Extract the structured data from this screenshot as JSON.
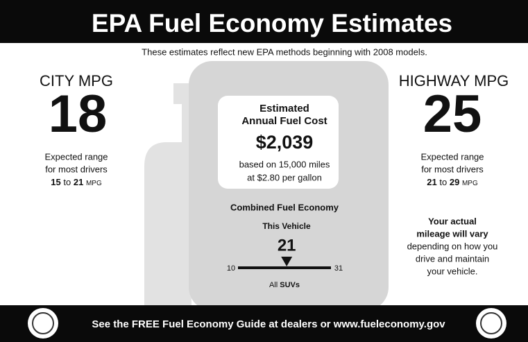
{
  "header": {
    "title": "EPA Fuel Economy Estimates",
    "subtitle": "These estimates reflect new EPA methods beginning with 2008 models."
  },
  "city": {
    "label": "CITY MPG",
    "value": 18,
    "range_text": [
      "Expected range",
      "for most drivers"
    ],
    "range_low": 15,
    "range_sep": "to",
    "range_high": 21,
    "range_unit": "MPG"
  },
  "highway": {
    "label": "HIGHWAY MPG",
    "value": 25,
    "range_text": [
      "Expected range",
      "for most drivers"
    ],
    "range_low": 21,
    "range_sep": "to",
    "range_high": 29,
    "range_unit": "MPG"
  },
  "fuel_cost": {
    "title": [
      "Estimated",
      "Annual Fuel Cost"
    ],
    "amount": "$2,039",
    "note": [
      "based on 15,000 miles",
      "at $2.80 per gallon"
    ]
  },
  "combined": {
    "title": "Combined Fuel Economy",
    "vehicle_label": "This Vehicle",
    "value": 21,
    "min": 10,
    "max": 31,
    "class_prefix": "All",
    "class_name": "SUVs"
  },
  "notice": {
    "bold_lines": [
      "Your actual",
      "mileage will vary"
    ],
    "lines": [
      "depending on how you",
      "drive and maintain",
      "your vehicle."
    ]
  },
  "footer": {
    "text": "See the FREE Fuel Economy Guide at dealers or www.fueleconomy.gov"
  }
}
